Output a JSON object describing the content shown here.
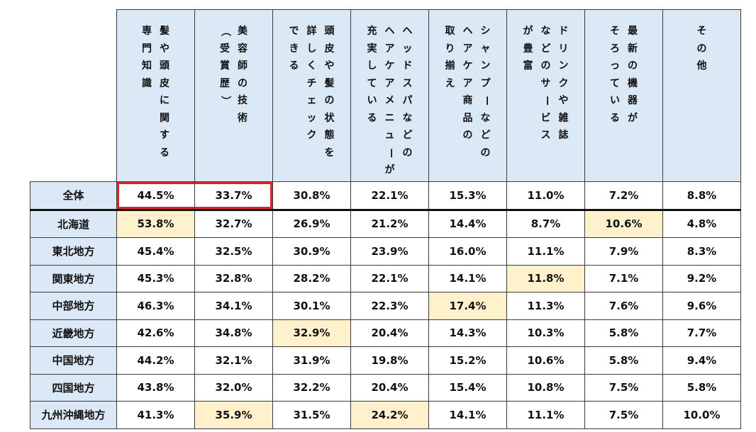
{
  "chart_data": {
    "type": "table",
    "columns": [
      [
        "髪や頭皮に関する",
        "専門知識"
      ],
      [
        "美容師の技術",
        "（受賞歴）"
      ],
      [
        "頭皮や髪の状態を",
        "詳しくチェック",
        "できる"
      ],
      [
        "ヘッドスパなどの",
        "ヘアケアメニューが",
        "充実している"
      ],
      [
        "シャンプーなどの",
        "ヘアケア商品の",
        "取り揃え"
      ],
      [
        "ドリンクや雑誌",
        "などのサービス",
        "が豊富"
      ],
      [
        "最新の機器が",
        "そろっている"
      ],
      [
        "その他"
      ]
    ],
    "rows": [
      {
        "label": "全体",
        "values": [
          "44.5%",
          "33.7%",
          "30.8%",
          "22.1%",
          "15.3%",
          "11.0%",
          "7.2%",
          "8.8%"
        ],
        "highlight": [],
        "boxed": [
          0,
          1
        ]
      },
      {
        "label": "北海道",
        "values": [
          "53.8%",
          "32.7%",
          "26.9%",
          "21.2%",
          "14.4%",
          "8.7%",
          "10.6%",
          "4.8%"
        ],
        "highlight": [
          0,
          6
        ]
      },
      {
        "label": "東北地方",
        "values": [
          "45.4%",
          "32.5%",
          "30.9%",
          "23.9%",
          "16.0%",
          "11.1%",
          "7.9%",
          "8.3%"
        ],
        "highlight": []
      },
      {
        "label": "関東地方",
        "values": [
          "45.3%",
          "32.8%",
          "28.2%",
          "22.1%",
          "14.1%",
          "11.8%",
          "7.1%",
          "9.2%"
        ],
        "highlight": [
          5
        ]
      },
      {
        "label": "中部地方",
        "values": [
          "46.3%",
          "34.1%",
          "30.1%",
          "22.3%",
          "17.4%",
          "11.3%",
          "7.6%",
          "9.6%"
        ],
        "highlight": [
          4
        ]
      },
      {
        "label": "近畿地方",
        "values": [
          "42.6%",
          "34.8%",
          "32.9%",
          "20.4%",
          "14.3%",
          "10.3%",
          "5.8%",
          "7.7%"
        ],
        "highlight": [
          2
        ]
      },
      {
        "label": "中国地方",
        "values": [
          "44.2%",
          "32.1%",
          "31.9%",
          "19.8%",
          "15.2%",
          "10.6%",
          "5.8%",
          "9.4%"
        ],
        "highlight": []
      },
      {
        "label": "四国地方",
        "values": [
          "43.8%",
          "32.0%",
          "32.2%",
          "20.4%",
          "15.4%",
          "10.8%",
          "7.5%",
          "5.8%"
        ],
        "highlight": []
      },
      {
        "label": "九州沖縄地方",
        "values": [
          "41.3%",
          "35.9%",
          "31.5%",
          "24.2%",
          "14.1%",
          "11.1%",
          "7.5%",
          "10.0%"
        ],
        "highlight": [
          1,
          3
        ]
      }
    ],
    "colors": {
      "header_bg": "#dbe8f5",
      "highlight_bg": "#fff1cc",
      "box": "#e02424"
    }
  }
}
